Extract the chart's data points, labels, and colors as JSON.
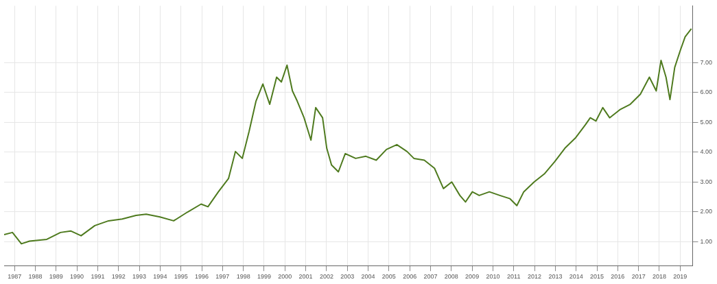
{
  "chart_data": {
    "type": "line",
    "legend": false,
    "grid": true,
    "marker": "none",
    "line_style": "solid",
    "x": [
      1987.0,
      1987.4,
      1987.83,
      1988.22,
      1989.05,
      1989.71,
      1990.2,
      1990.7,
      1991.36,
      1992.02,
      1992.68,
      1993.34,
      1993.83,
      1994.49,
      1995.15,
      1995.81,
      1996.47,
      1996.8,
      1997.3,
      1997.79,
      1998.12,
      1998.45,
      1998.78,
      1999.11,
      1999.44,
      1999.77,
      2000.1,
      2000.33,
      2000.6,
      2000.86,
      2001.09,
      2001.42,
      2001.75,
      2001.98,
      2002.31,
      2002.51,
      2002.74,
      2003.07,
      2003.4,
      2003.9,
      2004.39,
      2004.89,
      2005.38,
      2005.88,
      2006.37,
      2006.7,
      2007.2,
      2007.69,
      2008.12,
      2008.52,
      2008.91,
      2009.18,
      2009.51,
      2009.84,
      2010.33,
      2010.83,
      2011.32,
      2011.65,
      2011.98,
      2012.48,
      2012.97,
      2013.47,
      2013.96,
      2014.46,
      2014.95,
      2015.18,
      2015.45,
      2015.78,
      2016.11,
      2016.6,
      2017.1,
      2017.59,
      2018.02,
      2018.35,
      2018.58,
      2018.82,
      2019.01,
      2019.24,
      2019.51,
      2019.74,
      2020.04
    ],
    "series": [
      {
        "color": "#4e7a1e",
        "values": [
          1.24,
          1.31,
          0.93,
          1.02,
          1.08,
          1.31,
          1.36,
          1.2,
          1.54,
          1.7,
          1.76,
          1.88,
          1.92,
          1.83,
          1.7,
          1.99,
          2.26,
          2.17,
          2.67,
          3.12,
          4.02,
          3.79,
          4.7,
          5.71,
          6.28,
          5.6,
          6.51,
          6.35,
          6.91,
          6.05,
          5.71,
          5.15,
          4.4,
          5.49,
          5.15,
          4.13,
          3.57,
          3.34,
          3.95,
          3.79,
          3.86,
          3.73,
          4.09,
          4.25,
          4.02,
          3.79,
          3.73,
          3.46,
          2.78,
          3.0,
          2.55,
          2.33,
          2.67,
          2.55,
          2.67,
          2.55,
          2.44,
          2.21,
          2.67,
          3.0,
          3.27,
          3.68,
          4.13,
          4.47,
          4.92,
          5.15,
          5.04,
          5.49,
          5.15,
          5.42,
          5.6,
          5.94,
          6.51,
          6.05,
          7.07,
          6.51,
          5.76,
          6.84,
          7.41,
          7.86,
          8.13
        ]
      }
    ],
    "xlim": [
      1987,
      2020.1
    ],
    "xticks": [
      {
        "value": 1987.5,
        "label": "1987"
      },
      {
        "value": 1988.5,
        "label": "1988"
      },
      {
        "value": 1989.5,
        "label": "1989"
      },
      {
        "value": 1990.5,
        "label": "1990"
      },
      {
        "value": 1991.5,
        "label": "1991"
      },
      {
        "value": 1992.5,
        "label": "1992"
      },
      {
        "value": 1993.5,
        "label": "1993"
      },
      {
        "value": 1994.5,
        "label": "1994"
      },
      {
        "value": 1995.5,
        "label": "1995"
      },
      {
        "value": 1996.5,
        "label": "1996"
      },
      {
        "value": 1997.5,
        "label": "1997"
      },
      {
        "value": 1998.5,
        "label": "1998"
      },
      {
        "value": 1999.5,
        "label": "1999"
      },
      {
        "value": 2000.5,
        "label": "2000"
      },
      {
        "value": 2001.5,
        "label": "2001"
      },
      {
        "value": 2002.5,
        "label": "2002"
      },
      {
        "value": 2003.5,
        "label": "2003"
      },
      {
        "value": 2004.5,
        "label": "2004"
      },
      {
        "value": 2005.5,
        "label": "2005"
      },
      {
        "value": 2006.5,
        "label": "2006"
      },
      {
        "value": 2007.5,
        "label": "2007"
      },
      {
        "value": 2008.5,
        "label": "2008"
      },
      {
        "value": 2009.5,
        "label": "2009"
      },
      {
        "value": 2010.5,
        "label": "2010"
      },
      {
        "value": 2011.5,
        "label": "2011"
      },
      {
        "value": 2012.5,
        "label": "2012"
      },
      {
        "value": 2013.5,
        "label": "2013"
      },
      {
        "value": 2014.5,
        "label": "2014"
      },
      {
        "value": 2015.5,
        "label": "2015"
      },
      {
        "value": 2016.5,
        "label": "2016"
      },
      {
        "value": 2017.5,
        "label": "2017"
      },
      {
        "value": 2018.5,
        "label": "2018"
      },
      {
        "value": 2019.5,
        "label": "2019"
      }
    ],
    "ylim": [
      0.2,
      8.9
    ],
    "yticks": [
      {
        "value": 1,
        "label": "1.00"
      },
      {
        "value": 2,
        "label": "2.00"
      },
      {
        "value": 3,
        "label": "3.00"
      },
      {
        "value": 4,
        "label": "4.00"
      },
      {
        "value": 5,
        "label": "5.00"
      },
      {
        "value": 6,
        "label": "6.00"
      },
      {
        "value": 7,
        "label": "7.00"
      }
    ]
  }
}
